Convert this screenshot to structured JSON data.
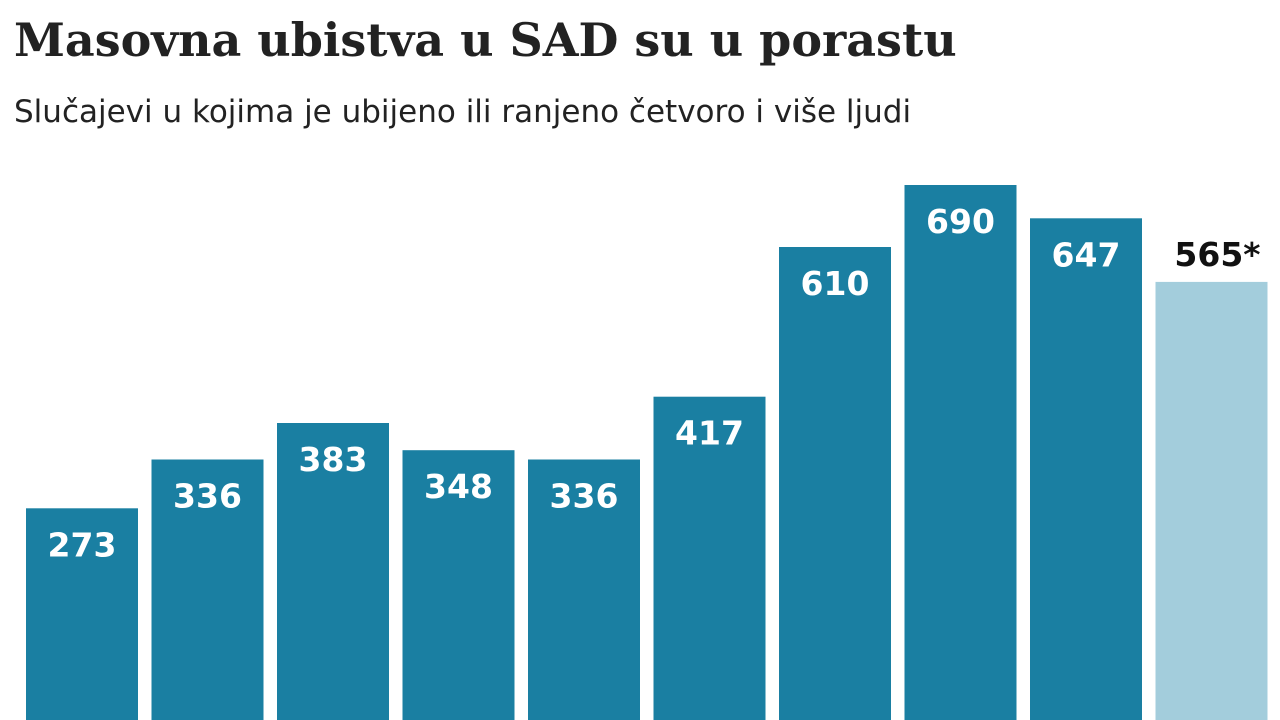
{
  "chart_data": {
    "type": "bar",
    "title": "Masovna ubistva u SAD su u porastu",
    "subtitle": "Slučajevi u kojima je ubijeno ili ranjeno četvoro i više ljudi",
    "values": [
      273,
      336,
      383,
      348,
      336,
      417,
      610,
      690,
      647,
      565
    ],
    "labels": [
      "273",
      "336",
      "383",
      "348",
      "336",
      "417",
      "610",
      "690",
      "647",
      "565*"
    ],
    "highlight_index": 9,
    "ylim": [
      0,
      690
    ],
    "grid": false,
    "legend": "none",
    "colors": {
      "bar": "#1a7fa2",
      "highlight": "#a3cddc",
      "label_inside": "#ffffff",
      "label_outside": "#111111",
      "text": "#222222"
    }
  }
}
